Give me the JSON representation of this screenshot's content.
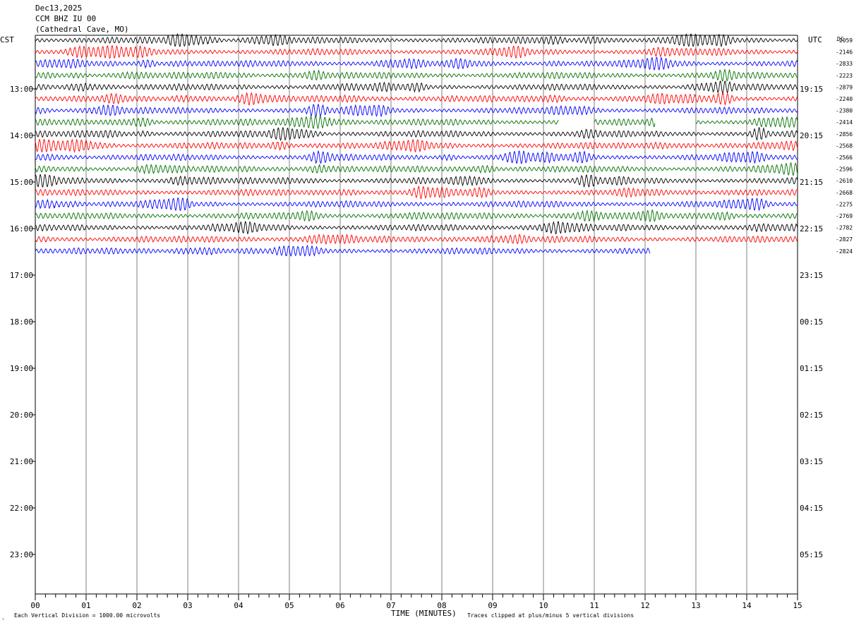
{
  "header": {
    "date": "Dec13,2025",
    "station": "CCM BHZ IU 00",
    "location": "(Cathedral Cave, MO)"
  },
  "labels": {
    "left_zone": "CST",
    "right_zone": "UTC",
    "dc_header": "DC",
    "x_axis_title": "TIME (MINUTES)",
    "scale_note": "Each Vertical Division = 1000.00 microvolts",
    "clip_note": "Traces clipped at plus/minus 5 vertical divisions"
  },
  "colors": {
    "cycle": [
      "#000000",
      "#ff0000",
      "#0000ff",
      "#007000"
    ],
    "grid": "#808080"
  },
  "chart_data": {
    "type": "line",
    "title": "CCM BHZ IU 00",
    "xlabel": "TIME (MINUTES)",
    "x_ticks": [
      "00",
      "01",
      "02",
      "03",
      "04",
      "05",
      "06",
      "07",
      "08",
      "09",
      "10",
      "11",
      "12",
      "13",
      "14",
      "15"
    ],
    "xlim": [
      0,
      15
    ],
    "left_hour_labels": [
      "13:00",
      "14:00",
      "15:00",
      "16:00",
      "17:00",
      "18:00",
      "19:00",
      "20:00",
      "21:00",
      "22:00",
      "23:00"
    ],
    "right_hour_labels": [
      "19:15",
      "20:15",
      "21:15",
      "22:15",
      "23:15",
      "00:15",
      "01:15",
      "02:15",
      "03:15",
      "04:15",
      "05:15"
    ],
    "trace_count": 19,
    "dc_offsets": [
      "-2059",
      "-2146",
      "-2833",
      "-2223",
      "-2879",
      "-2240",
      "-2380",
      "-2414",
      "-2856",
      "-2568",
      "-2566",
      "-2596",
      "-2610",
      "-2668",
      "-2275",
      "-2769",
      "-2782",
      "-2827",
      "-2824"
    ],
    "last_trace_end_minute": 12.1,
    "gap_segments": [
      {
        "trace": 7,
        "from_minute": 10.3,
        "to_minute": 11.0
      },
      {
        "trace": 7,
        "from_minute": 12.2,
        "to_minute": 13.0
      }
    ]
  }
}
